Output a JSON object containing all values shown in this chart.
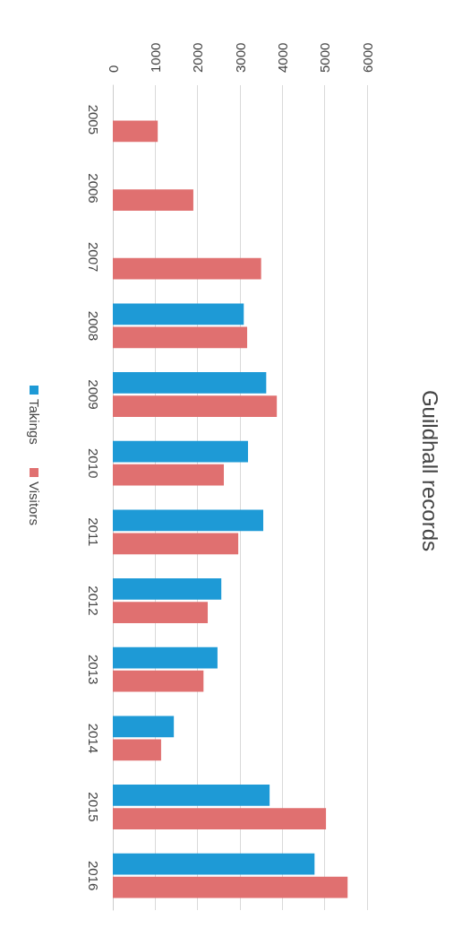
{
  "chart_data": {
    "type": "bar",
    "title": "Guildhall records",
    "orientation": "horizontal",
    "categories": [
      "2005",
      "2006",
      "2007",
      "2008",
      "2009",
      "2010",
      "2011",
      "2012",
      "2013",
      "2014",
      "2015",
      "2016"
    ],
    "series": [
      {
        "name": "Takings",
        "color": "#1e9ad6",
        "values": [
          null,
          null,
          null,
          3090,
          3620,
          3190,
          3550,
          2560,
          2470,
          1440,
          3700,
          4760
        ]
      },
      {
        "name": "Visitors",
        "color": "#e07070",
        "values": [
          1060,
          1900,
          3500,
          3170,
          3870,
          2620,
          2960,
          2240,
          2140,
          1140,
          5030,
          5540
        ]
      }
    ],
    "xlim": [
      0,
      6000
    ],
    "xticks": [
      0,
      1000,
      2000,
      3000,
      4000,
      5000,
      6000
    ],
    "grid": "x",
    "legend": "left"
  }
}
